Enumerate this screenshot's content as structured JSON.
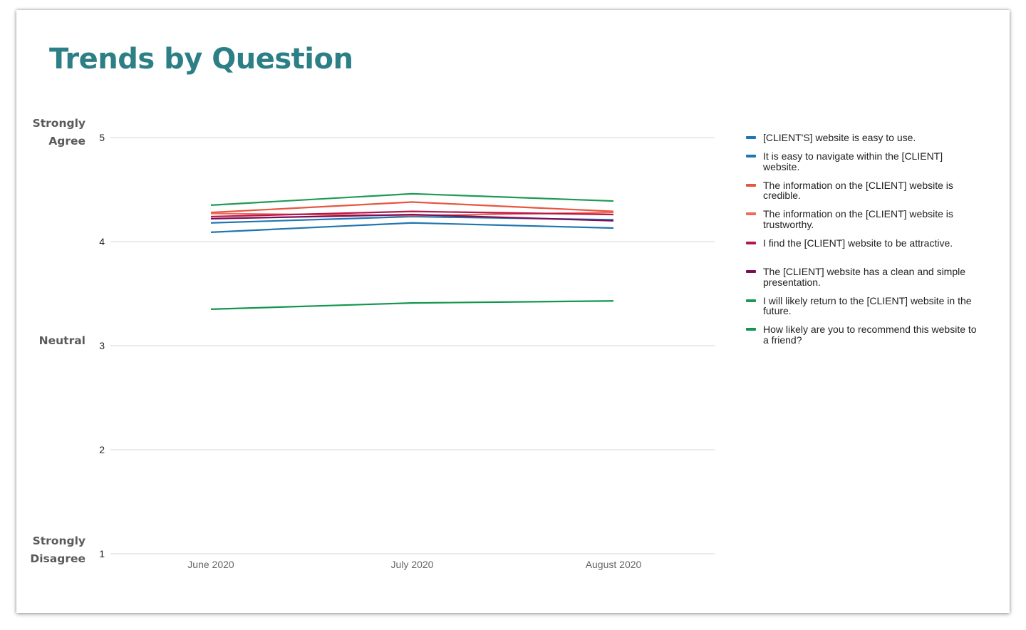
{
  "page": {
    "title": "Trends by Question",
    "y_scale_labels": [
      {
        "value": 5,
        "text": "Strongly\nAgree"
      },
      {
        "value": 3,
        "text": "Neutral"
      },
      {
        "value": 1,
        "text": "Strongly\nDisagree"
      }
    ]
  },
  "chart_data": {
    "type": "line",
    "categories": [
      "June 2020",
      "July 2020",
      "August 2020"
    ],
    "ylim": [
      1,
      5
    ],
    "yticks": [
      1,
      2,
      3,
      4,
      5
    ],
    "grid": true,
    "legend_position": "right",
    "series": [
      {
        "name": "[CLIENT'S] website is easy to use.",
        "color": "#1f77b4",
        "values": [
          4.18,
          4.24,
          4.21
        ]
      },
      {
        "name": "It is easy to navigate within the [CLIENT] website.",
        "color": "#2176ae",
        "values": [
          4.09,
          4.18,
          4.13
        ]
      },
      {
        "name": "The information on the [CLIENT] website is credible.",
        "color": "#e8553f",
        "values": [
          4.28,
          4.38,
          4.29
        ]
      },
      {
        "name": "The information on the [CLIENT] website is trustworthy.",
        "color": "#ee6a5a",
        "values": [
          4.27,
          4.25,
          4.28
        ]
      },
      {
        "name": "I find the [CLIENT] website to be attractive.",
        "color": "#b5174b",
        "values": [
          4.24,
          4.29,
          4.26
        ]
      },
      {
        "name": "The [CLIENT] website has a clean and simple presentation.",
        "color": "#7a0f58",
        "values": [
          4.22,
          4.26,
          4.2
        ]
      },
      {
        "name": "I will likely return to the [CLIENT] website in the future.",
        "color": "#1f9a55",
        "values": [
          4.35,
          4.46,
          4.39
        ]
      },
      {
        "name": "How likely are you to recommend this website to a friend?",
        "color": "#12964e",
        "values": [
          3.35,
          3.41,
          3.43
        ]
      }
    ]
  }
}
